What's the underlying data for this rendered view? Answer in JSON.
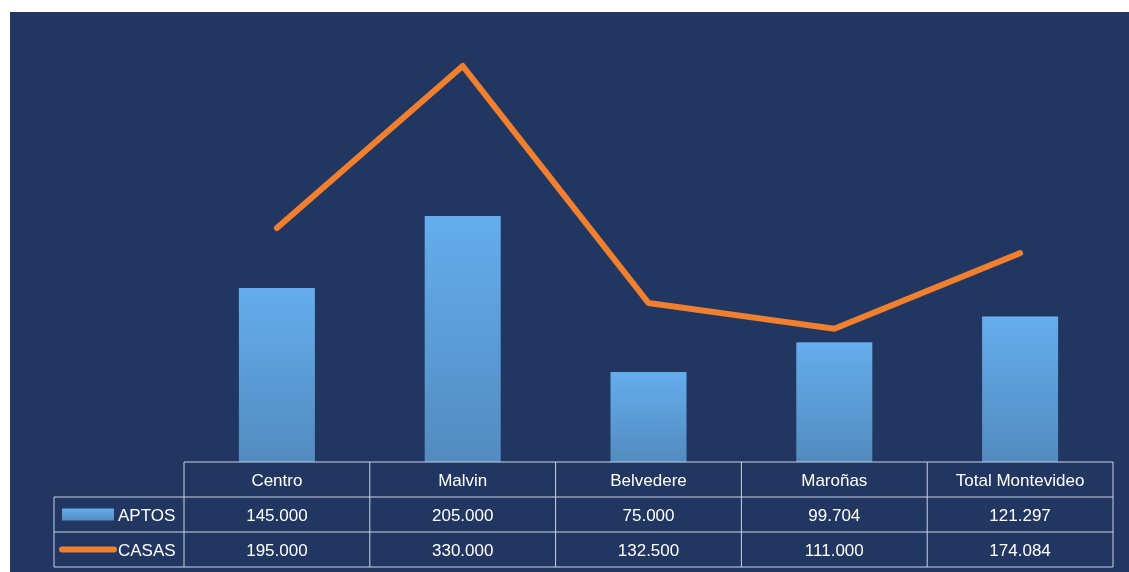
{
  "chart_data": {
    "type": "bar",
    "categories": [
      "Centro",
      "Malvin",
      "Belvedere",
      "Maroñas",
      "Total Montevideo"
    ],
    "ylim": [
      0,
      375000
    ],
    "legend": "bottom left",
    "series": [
      {
        "name": "APTOS",
        "color": "#5b9bd5",
        "values": [
          145000,
          205000,
          75000,
          99704,
          121297
        ],
        "value_labels": [
          "145.000",
          "205.000",
          "75.000",
          "99.704",
          "121.297"
        ]
      },
      {
        "name": "CASAS",
        "type": "line",
        "color": "#f07f2e",
        "values": [
          195000,
          330000,
          132500,
          111000,
          174084
        ],
        "value_labels": [
          "195.000",
          "330.000",
          "132.500",
          "111.000",
          "174.084"
        ]
      }
    ]
  }
}
